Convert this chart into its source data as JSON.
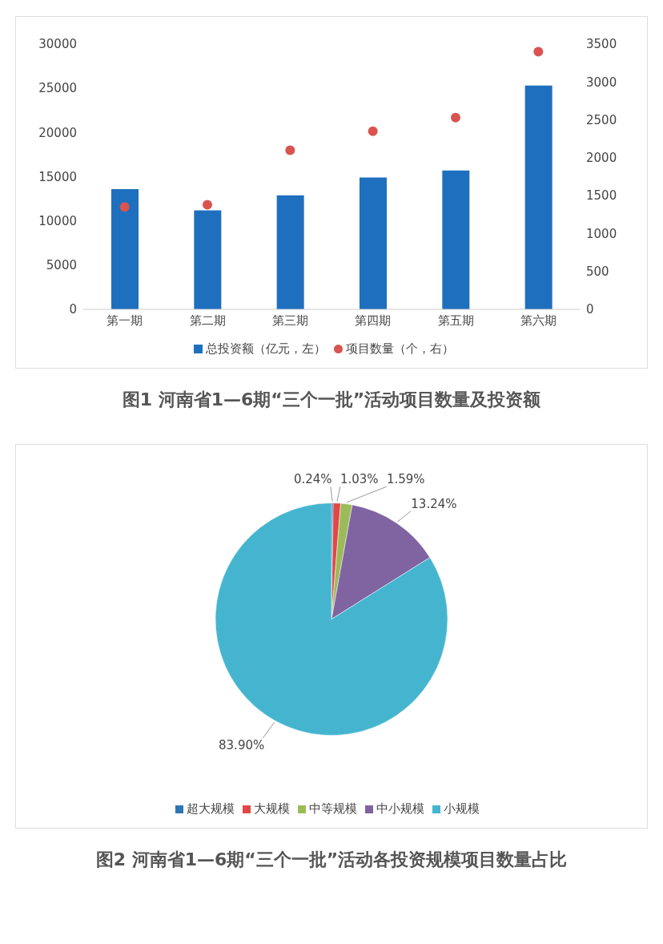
{
  "chart_data": [
    {
      "type": "bar",
      "title": "图1 河南省1—6期“三个一批”活动项目数量及投资额",
      "categories": [
        "第一期",
        "第二期",
        "第三期",
        "第四期",
        "第五期",
        "第六期"
      ],
      "series": [
        {
          "name": "总投资额（亿元，左）",
          "type": "bar",
          "color": "#1f6fbf",
          "values": [
            13600,
            11200,
            12900,
            14900,
            15700,
            25300
          ]
        },
        {
          "name": "项目数量（个，右）",
          "type": "scatter",
          "axis": "y2",
          "color": "#d9534f",
          "values": [
            1350,
            1380,
            2100,
            2350,
            2530,
            3400
          ]
        }
      ],
      "ylim": [
        0,
        30000
      ],
      "yticks": [
        0,
        5000,
        10000,
        15000,
        20000,
        25000,
        30000
      ],
      "y2lim": [
        0,
        3500
      ],
      "y2ticks": [
        0,
        500,
        1000,
        1500,
        2000,
        2500,
        3000,
        3500
      ],
      "legend": "bottom",
      "grid": false
    },
    {
      "type": "pie",
      "title": "图2 河南省1—6期“三个一批”活动各投资规模项目数量占比",
      "categories": [
        "超大规模",
        "大规模",
        "中等规模",
        "中小规模",
        "小规模"
      ],
      "values": [
        0.24,
        1.03,
        1.59,
        13.24,
        83.9
      ],
      "value_labels": [
        "0.24%",
        "1.03%",
        "1.59%",
        "13.24%",
        "83.90%"
      ],
      "colors": [
        "#2e75b6",
        "#e04848",
        "#9bbb59",
        "#8064a2",
        "#45b5cf"
      ],
      "legend": "bottom"
    }
  ]
}
